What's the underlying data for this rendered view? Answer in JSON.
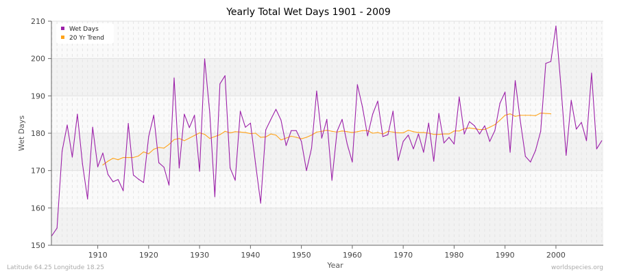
{
  "chart_data": {
    "type": "line",
    "title": "Yearly Total Wet Days 1901 - 2009",
    "xlabel": "Year",
    "ylabel": "Wet Days",
    "xlim": [
      1901,
      2009
    ],
    "ylim": [
      150,
      210
    ],
    "xticks": [
      1910,
      1920,
      1930,
      1940,
      1950,
      1960,
      1970,
      1980,
      1990,
      2000
    ],
    "yticks": [
      150,
      160,
      170,
      180,
      190,
      200,
      210
    ],
    "grid": true,
    "legend_position": "top-left",
    "colors": {
      "wet": "#9b1fa8",
      "trend": "#ffa31a"
    },
    "series": [
      {
        "name": "Wet Days",
        "start_year": 1901,
        "values": [
          152.6,
          154.6,
          175.2,
          182.2,
          173.6,
          185.1,
          171.8,
          162.4,
          181.6,
          171.0,
          174.7,
          169.0,
          167.0,
          167.6,
          164.6,
          182.6,
          168.8,
          167.7,
          166.8,
          179.1,
          184.8,
          172.1,
          170.9,
          166.1,
          194.8,
          170.7,
          185.1,
          181.5,
          184.8,
          169.8,
          199.9,
          185.5,
          163.0,
          193.2,
          195.4,
          170.7,
          167.4,
          185.9,
          181.6,
          182.7,
          171.8,
          161.3,
          180.9,
          183.7,
          186.4,
          183.5,
          176.7,
          180.7,
          180.7,
          177.8,
          170.0,
          176.0,
          191.3,
          178.7,
          183.7,
          167.4,
          180.5,
          183.7,
          177.1,
          172.3,
          193.0,
          187.0,
          179.3,
          185.1,
          188.6,
          179.1,
          179.6,
          185.9,
          172.7,
          177.8,
          179.5,
          175.8,
          179.8,
          174.9,
          182.7,
          172.5,
          185.3,
          177.4,
          178.9,
          177.1,
          189.7,
          179.8,
          183.1,
          182.0,
          179.8,
          182.0,
          177.8,
          180.7,
          188.0,
          191.0,
          174.9,
          194.1,
          183.3,
          173.8,
          172.3,
          175.4,
          180.5,
          198.7,
          199.2,
          208.7,
          192.3,
          174.1,
          188.8,
          181.1,
          182.9,
          178.0,
          196.1,
          175.8,
          178.0
        ]
      },
      {
        "name": "20 Yr Trend",
        "start_year": 1911,
        "values": [
          171.5,
          172.5,
          173.3,
          172.9,
          173.5,
          173.5,
          173.5,
          173.9,
          175.0,
          174.5,
          175.7,
          176.2,
          176.0,
          177.0,
          178.3,
          178.6,
          178.0,
          178.7,
          179.4,
          180.1,
          179.7,
          178.6,
          179.1,
          179.6,
          180.5,
          180.1,
          180.4,
          180.3,
          180.2,
          179.9,
          180.0,
          178.9,
          179.0,
          179.8,
          179.5,
          178.2,
          178.7,
          179.2,
          178.9,
          178.5,
          178.9,
          179.5,
          180.3,
          180.5,
          180.8,
          180.5,
          180.3,
          180.6,
          180.4,
          180.2,
          180.4,
          180.7,
          180.7,
          180.0,
          180.2,
          179.8,
          180.5,
          180.3,
          180.1,
          180.1,
          180.8,
          180.4,
          180.2,
          180.2,
          180.0,
          179.7,
          179.7,
          179.8,
          179.8,
          180.6,
          180.6,
          181.2,
          181.4,
          181.2,
          181.0,
          181.0,
          181.6,
          182.3,
          183.5,
          184.8,
          185.2,
          184.5,
          184.8,
          184.8,
          184.8,
          184.7,
          185.4,
          185.3,
          185.2
        ]
      }
    ]
  },
  "footer": {
    "location": "Latitude 64.25 Longitude 18.25",
    "source": "worldspecies.org"
  }
}
